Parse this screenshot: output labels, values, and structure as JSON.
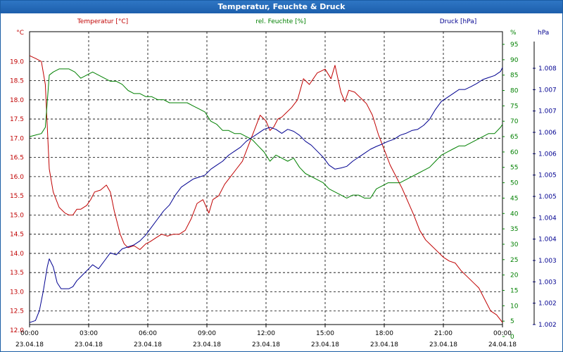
{
  "window": {
    "title": "Temperatur, Feuchte & Druck"
  },
  "chart_data": {
    "type": "line",
    "title": "Temperatur, Feuchte & Druck",
    "colors": {
      "temperature": "#c00000",
      "humidity": "#008000",
      "pressure": "#000090"
    },
    "axes": {
      "left": {
        "label": "Temperatur [°C]",
        "unit": "°C",
        "min": 12.0,
        "max": 19.5,
        "ticks": [
          "12.0",
          "12.5",
          "13.0",
          "13.5",
          "14.0",
          "14.5",
          "15.0",
          "15.5",
          "16.0",
          "16.5",
          "17.0",
          "17.5",
          "18.0",
          "18.5",
          "19.0"
        ]
      },
      "mid": {
        "label": "rel. Feuchte [%]",
        "unit": "%",
        "min": 0,
        "max": 95,
        "ticks": [
          "0",
          "5",
          "10",
          "15",
          "20",
          "25",
          "30",
          "35",
          "40",
          "45",
          "50",
          "55",
          "60",
          "65",
          "70",
          "75",
          "80",
          "85",
          "90",
          "95"
        ]
      },
      "right": {
        "label": "Druck [hPa]",
        "unit": "hPa",
        "ticks": [
          "1.002",
          "1.002",
          "1.003",
          "1.003",
          "1.004",
          "1.004",
          "1.005",
          "1.005",
          "1.006",
          "1.006",
          "1.007",
          "1.007",
          "1.008"
        ]
      }
    },
    "x_ticks": [
      {
        "time": "00:00",
        "date": "23.04.18"
      },
      {
        "time": "03:00",
        "date": "23.04.18"
      },
      {
        "time": "06:00",
        "date": "23.04.18"
      },
      {
        "time": "09:00",
        "date": "23.04.18"
      },
      {
        "time": "12:00",
        "date": "23.04.18"
      },
      {
        "time": "15:00",
        "date": "23.04.18"
      },
      {
        "time": "18:00",
        "date": "23.04.18"
      },
      {
        "time": "21:00",
        "date": "23.04.18"
      },
      {
        "time": "00:00",
        "date": "24.04.18"
      }
    ],
    "x_range_hours": [
      0,
      24
    ],
    "series": [
      {
        "name": "Temperatur [°C]",
        "axis": "left",
        "x": [
          0,
          0.3,
          0.6,
          0.8,
          1.0,
          1.2,
          1.5,
          1.8,
          2.0,
          2.2,
          2.4,
          2.6,
          2.9,
          3.1,
          3.3,
          3.6,
          3.9,
          4.1,
          4.3,
          4.6,
          4.8,
          5.0,
          5.3,
          5.6,
          5.9,
          6.1,
          6.4,
          6.7,
          7.0,
          7.3,
          7.6,
          7.9,
          8.2,
          8.5,
          8.8,
          9.1,
          9.3,
          9.6,
          9.9,
          10.2,
          10.5,
          10.8,
          11.1,
          11.4,
          11.7,
          12.0,
          12.2,
          12.4,
          12.6,
          12.8,
          13.0,
          13.3,
          13.6,
          13.9,
          14.2,
          14.4,
          14.6,
          14.8,
          15.0,
          15.3,
          15.5,
          15.8,
          16.0,
          16.2,
          16.5,
          16.8,
          17.1,
          17.4,
          17.7,
          18.0,
          18.3,
          18.6,
          18.9,
          19.2,
          19.5,
          19.8,
          20.1,
          20.4,
          20.7,
          21.0,
          21.3,
          21.6,
          21.9,
          22.2,
          22.5,
          22.8,
          23.1,
          23.4,
          23.7,
          24.0
        ],
        "values": [
          19.15,
          19.08,
          19.0,
          18.4,
          16.2,
          15.6,
          15.2,
          15.05,
          15.0,
          15.0,
          15.15,
          15.15,
          15.25,
          15.4,
          15.6,
          15.65,
          15.78,
          15.6,
          15.1,
          14.5,
          14.25,
          14.15,
          14.2,
          14.1,
          14.25,
          14.3,
          14.4,
          14.5,
          14.45,
          14.5,
          14.5,
          14.6,
          14.9,
          15.3,
          15.4,
          15.05,
          15.4,
          15.5,
          15.8,
          16.0,
          16.2,
          16.4,
          16.8,
          17.2,
          17.6,
          17.45,
          17.2,
          17.3,
          17.5,
          17.55,
          17.65,
          17.8,
          18.0,
          18.55,
          18.4,
          18.55,
          18.7,
          18.75,
          18.8,
          18.55,
          18.9,
          18.2,
          17.95,
          18.25,
          18.2,
          18.05,
          17.9,
          17.6,
          17.1,
          16.7,
          16.3,
          16.0,
          15.7,
          15.35,
          15.0,
          14.6,
          14.35,
          14.2,
          14.05,
          13.9,
          13.8,
          13.75,
          13.55,
          13.4,
          13.25,
          13.1,
          12.8,
          12.5,
          12.4,
          12.2
        ]
      },
      {
        "name": "rel. Feuchte [%]",
        "axis": "mid",
        "x": [
          0,
          0.3,
          0.6,
          0.8,
          1.0,
          1.2,
          1.5,
          1.8,
          2.0,
          2.3,
          2.6,
          2.9,
          3.2,
          3.5,
          3.8,
          4.1,
          4.4,
          4.7,
          5.0,
          5.3,
          5.6,
          5.9,
          6.2,
          6.5,
          6.8,
          7.1,
          7.4,
          7.7,
          8.0,
          8.3,
          8.6,
          8.9,
          9.2,
          9.5,
          9.8,
          10.1,
          10.4,
          10.7,
          11.0,
          11.3,
          11.6,
          11.9,
          12.2,
          12.5,
          12.8,
          13.1,
          13.4,
          13.7,
          14.0,
          14.3,
          14.6,
          14.9,
          15.2,
          15.5,
          15.8,
          16.1,
          16.4,
          16.7,
          17.0,
          17.3,
          17.6,
          17.9,
          18.2,
          18.5,
          18.8,
          19.1,
          19.4,
          19.7,
          20.0,
          20.3,
          20.6,
          20.9,
          21.2,
          21.5,
          21.8,
          22.1,
          22.4,
          22.7,
          23.0,
          23.3,
          23.6,
          23.9,
          24.0
        ],
        "values": [
          65,
          65.5,
          66,
          68,
          85,
          86,
          87,
          87,
          87,
          86,
          84,
          85,
          86,
          85,
          84,
          83,
          83,
          82,
          80,
          79,
          79,
          78,
          78,
          77,
          77,
          76,
          76,
          76,
          76,
          75,
          74,
          73,
          70,
          69,
          67,
          67,
          66,
          66,
          65,
          64,
          62,
          60,
          57,
          59,
          58,
          57,
          58,
          55,
          53,
          52,
          51,
          50,
          48,
          47,
          46,
          45,
          46,
          46,
          45,
          45,
          48,
          49,
          50,
          50,
          50,
          51,
          52,
          53,
          54,
          55,
          57,
          59,
          60,
          61,
          62,
          62,
          63,
          64,
          65,
          66,
          66,
          68,
          69
        ]
      },
      {
        "name": "Druck [hPa]",
        "axis": "pressure",
        "scale_min": 1001.85,
        "scale_max": 1008.6,
        "x": [
          0,
          0.3,
          0.5,
          0.7,
          0.9,
          1.0,
          1.2,
          1.4,
          1.6,
          1.8,
          2.0,
          2.2,
          2.4,
          2.6,
          2.8,
          3.0,
          3.2,
          3.5,
          3.8,
          4.1,
          4.4,
          4.7,
          5.0,
          5.3,
          5.6,
          5.9,
          6.2,
          6.5,
          6.8,
          7.1,
          7.4,
          7.7,
          8.0,
          8.3,
          8.6,
          8.9,
          9.2,
          9.5,
          9.8,
          10.1,
          10.4,
          10.7,
          11.0,
          11.3,
          11.6,
          11.9,
          12.2,
          12.5,
          12.8,
          13.1,
          13.4,
          13.7,
          14.0,
          14.3,
          14.6,
          14.9,
          15.2,
          15.5,
          15.8,
          16.1,
          16.4,
          16.7,
          17.0,
          17.3,
          17.6,
          17.9,
          18.2,
          18.5,
          18.8,
          19.1,
          19.4,
          19.7,
          20.0,
          20.3,
          20.6,
          20.9,
          21.2,
          21.5,
          21.8,
          22.1,
          22.4,
          22.7,
          23.0,
          23.3,
          23.6,
          23.9,
          24.0
        ],
        "values": [
          1001.9,
          1001.95,
          1002.2,
          1002.7,
          1003.3,
          1003.5,
          1003.3,
          1002.9,
          1002.75,
          1002.75,
          1002.75,
          1002.8,
          1002.95,
          1003.05,
          1003.15,
          1003.25,
          1003.35,
          1003.25,
          1003.45,
          1003.65,
          1003.6,
          1003.75,
          1003.8,
          1003.85,
          1003.95,
          1004.1,
          1004.3,
          1004.5,
          1004.7,
          1004.85,
          1005.1,
          1005.3,
          1005.4,
          1005.5,
          1005.55,
          1005.6,
          1005.75,
          1005.85,
          1005.95,
          1006.1,
          1006.2,
          1006.3,
          1006.45,
          1006.55,
          1006.65,
          1006.75,
          1006.8,
          1006.75,
          1006.65,
          1006.75,
          1006.7,
          1006.6,
          1006.45,
          1006.35,
          1006.2,
          1006.05,
          1005.85,
          1005.75,
          1005.78,
          1005.82,
          1005.95,
          1006.05,
          1006.15,
          1006.25,
          1006.32,
          1006.38,
          1006.45,
          1006.5,
          1006.6,
          1006.65,
          1006.72,
          1006.75,
          1006.85,
          1007.0,
          1007.25,
          1007.45,
          1007.55,
          1007.65,
          1007.75,
          1007.75,
          1007.82,
          1007.9,
          1008.0,
          1008.05,
          1008.1,
          1008.2,
          1008.3
        ]
      }
    ]
  }
}
